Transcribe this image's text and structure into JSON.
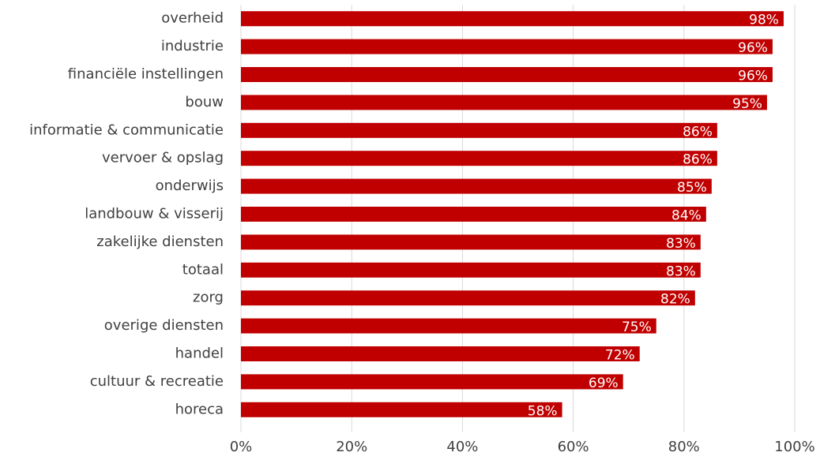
{
  "chart_data": {
    "type": "hbar",
    "categories": [
      "overheid",
      "industrie",
      "financiële instellingen",
      "bouw",
      "informatie & communicatie",
      "vervoer & opslag",
      "onderwijs",
      "landbouw & visserij",
      "zakelijke diensten",
      "totaal",
      "zorg",
      "overige diensten",
      "handel",
      "cultuur & recreatie",
      "horeca"
    ],
    "values": [
      98,
      96,
      96,
      95,
      86,
      86,
      85,
      84,
      83,
      83,
      82,
      75,
      72,
      69,
      58
    ],
    "value_labels": [
      "98%",
      "96%",
      "96%",
      "95%",
      "86%",
      "86%",
      "85%",
      "84%",
      "83%",
      "83%",
      "82%",
      "75%",
      "72%",
      "69%",
      "58%"
    ],
    "color": "#c00000",
    "xlim": [
      0,
      100
    ],
    "xticks": [
      {
        "value": 0,
        "label": "0%"
      },
      {
        "value": 20,
        "label": "20%"
      },
      {
        "value": 40,
        "label": "40%"
      },
      {
        "value": 60,
        "label": "60%"
      },
      {
        "value": 80,
        "label": "80%"
      },
      {
        "value": 100,
        "label": "100%"
      }
    ],
    "grid": true
  }
}
